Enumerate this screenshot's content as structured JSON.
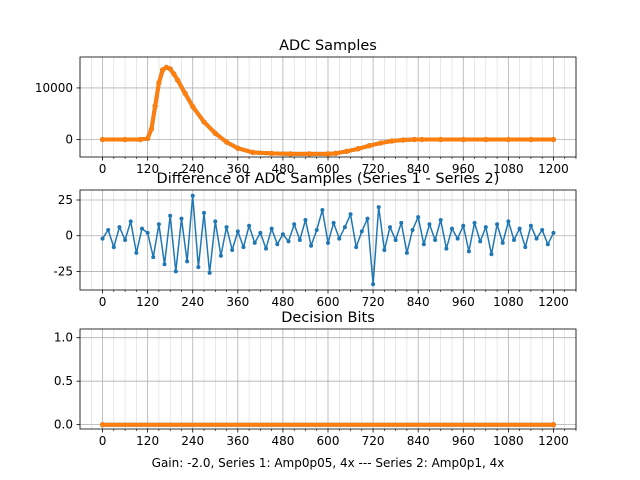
{
  "figure": {
    "footer": "Gain: -2.0, Series 1: Amp0p05, 4x --- Series 2: Amp0p1, 4x"
  },
  "colors": {
    "series1": "#1f77b4",
    "series2": "#ff7f0e",
    "grid": "#b0b0b0",
    "axes": "#000000"
  },
  "chart_data": [
    {
      "type": "line",
      "title": "ADC Samples",
      "xlabel": "",
      "ylabel": "",
      "xlim": [
        -60,
        1260
      ],
      "ylim": [
        -3400,
        16000
      ],
      "xticks": [
        0,
        120,
        240,
        360,
        480,
        600,
        720,
        840,
        960,
        1080,
        1200
      ],
      "yticks": [
        0,
        10000
      ],
      "grid": true,
      "series": [
        {
          "name": "Series 1",
          "color": "#1f77b4",
          "x": [
            0,
            60,
            100,
            120,
            130,
            140,
            150,
            160,
            170,
            180,
            190,
            200,
            220,
            240,
            270,
            300,
            330,
            360,
            400,
            450,
            500,
            550,
            600,
            620,
            650,
            680,
            710,
            740,
            770,
            800,
            830,
            850,
            900,
            960,
            1020,
            1080,
            1140,
            1200
          ],
          "values": [
            0,
            0,
            0,
            200,
            2000,
            6500,
            11000,
            13500,
            14000,
            13700,
            12700,
            11500,
            8900,
            6400,
            3400,
            1200,
            -500,
            -1700,
            -2500,
            -2700,
            -2800,
            -2800,
            -2800,
            -2700,
            -2300,
            -1800,
            -1200,
            -700,
            -300,
            -100,
            0,
            0,
            0,
            0,
            0,
            0,
            0,
            0
          ]
        },
        {
          "name": "Series 2",
          "color": "#ff7f0e",
          "x": [
            0,
            60,
            100,
            120,
            130,
            140,
            150,
            160,
            170,
            180,
            190,
            200,
            220,
            240,
            270,
            300,
            330,
            360,
            400,
            450,
            500,
            550,
            600,
            620,
            650,
            680,
            710,
            740,
            770,
            800,
            830,
            850,
            900,
            960,
            1020,
            1080,
            1140,
            1200
          ],
          "values": [
            0,
            0,
            0,
            200,
            2000,
            6500,
            11000,
            13500,
            14000,
            13700,
            12700,
            11500,
            8900,
            6400,
            3400,
            1200,
            -500,
            -1700,
            -2500,
            -2700,
            -2800,
            -2800,
            -2800,
            -2700,
            -2300,
            -1800,
            -1200,
            -700,
            -300,
            -100,
            0,
            0,
            0,
            0,
            0,
            0,
            0,
            0
          ]
        }
      ]
    },
    {
      "type": "line",
      "title": "Difference of ADC Samples (Series 1 - Series 2)",
      "xlabel": "",
      "ylabel": "",
      "xlim": [
        -60,
        1260
      ],
      "ylim": [
        -38,
        32
      ],
      "xticks": [
        0,
        120,
        240,
        360,
        480,
        600,
        720,
        840,
        960,
        1080,
        1200
      ],
      "yticks": [
        -25,
        0,
        25
      ],
      "grid": true,
      "series": [
        {
          "name": "Difference",
          "color": "#1f77b4",
          "x": [
            0,
            15,
            30,
            45,
            60,
            75,
            90,
            105,
            120,
            135,
            150,
            165,
            180,
            195,
            210,
            225,
            240,
            255,
            270,
            285,
            300,
            315,
            330,
            345,
            360,
            375,
            390,
            405,
            420,
            435,
            450,
            465,
            480,
            495,
            510,
            525,
            540,
            555,
            570,
            585,
            600,
            615,
            630,
            645,
            660,
            675,
            690,
            705,
            720,
            735,
            750,
            765,
            780,
            795,
            810,
            825,
            840,
            855,
            870,
            885,
            900,
            915,
            930,
            945,
            960,
            975,
            990,
            1005,
            1020,
            1035,
            1050,
            1065,
            1080,
            1095,
            1110,
            1125,
            1140,
            1155,
            1170,
            1185,
            1200
          ],
          "values": [
            -2,
            4,
            -8,
            6,
            -3,
            10,
            -12,
            5,
            2,
            -15,
            8,
            -20,
            14,
            -25,
            12,
            -18,
            28,
            -22,
            16,
            -26,
            10,
            -14,
            6,
            -10,
            3,
            -8,
            7,
            -5,
            2,
            -9,
            5,
            -6,
            1,
            -4,
            8,
            -3,
            11,
            -7,
            4,
            18,
            -5,
            9,
            -2,
            6,
            15,
            -8,
            3,
            12,
            -34,
            20,
            -10,
            6,
            -3,
            9,
            -12,
            4,
            13,
            -6,
            8,
            -3,
            11,
            -9,
            5,
            -2,
            7,
            -11,
            9,
            -4,
            6,
            -13,
            8,
            -5,
            10,
            -3,
            5,
            -8,
            7,
            -2,
            4,
            -6,
            2
          ]
        }
      ]
    },
    {
      "type": "line",
      "title": "Decision Bits",
      "xlabel": "Gain: -2.0, Series 1: Amp0p05, 4x --- Series 2: Amp0p1, 4x",
      "ylabel": "",
      "xlim": [
        -60,
        1260
      ],
      "ylim": [
        -0.05,
        1.1
      ],
      "xticks": [
        0,
        120,
        240,
        360,
        480,
        600,
        720,
        840,
        960,
        1080,
        1200
      ],
      "yticks": [
        0.0,
        0.5,
        1.0
      ],
      "ytick_labels": [
        "0.0",
        "0.5",
        "1.0"
      ],
      "grid": true,
      "series": [
        {
          "name": "Series 1",
          "color": "#1f77b4",
          "x": [
            0,
            1200
          ],
          "values": [
            0,
            0
          ]
        },
        {
          "name": "Series 2",
          "color": "#ff7f0e",
          "x": [
            0,
            1200
          ],
          "values": [
            0,
            0
          ]
        }
      ]
    }
  ]
}
